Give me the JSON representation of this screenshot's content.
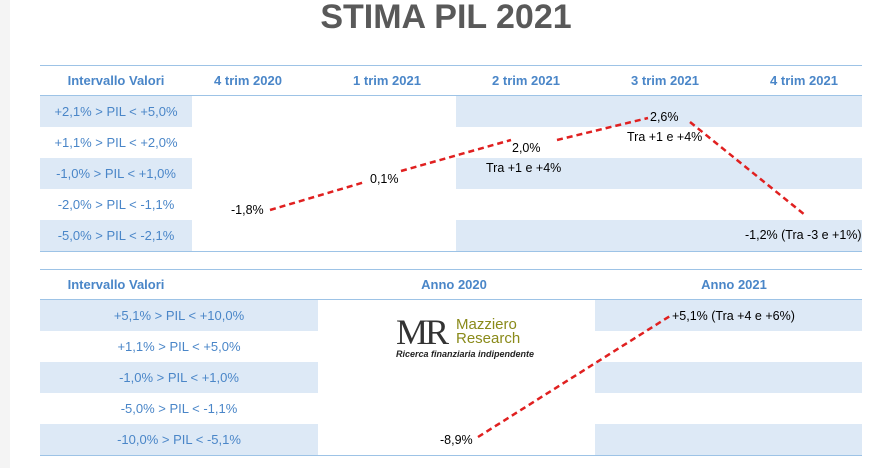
{
  "page": {
    "title": "STIMA PIL 2021"
  },
  "colors": {
    "band": "#dde9f6",
    "header_text": "#4a86c8",
    "line": "#e02020"
  },
  "logo": {
    "mark": "MR",
    "brand_line1": "Mazziero",
    "brand_line2": "Research",
    "tagline": "Ricerca finanziaria indipendente"
  },
  "chart_data": [
    {
      "type": "line",
      "title": "",
      "xlabel": "Intervallo Valori",
      "categories": [
        "4 trim 2020",
        "1 trim 2021",
        "2 trim 2021",
        "3 trim 2021",
        "4 trim 2021"
      ],
      "row_labels": [
        "+2,1% > PIL < +5,0%",
        "+1,1% > PIL < +2,0%",
        "-1,0% > PIL < +1,0%",
        "-2,0% > PIL < -1,1%",
        "-5,0% > PIL < -2,1%"
      ],
      "series": [
        {
          "values": [
            -1.8,
            0.1,
            2.0,
            2.6,
            -1.2
          ],
          "labels": [
            "-1,8%",
            "0,1%",
            "2,0%",
            "2,6%",
            "-1,2% (Tra -3 e +1%)"
          ],
          "range_notes": [
            "",
            "",
            "Tra +1 e +4%",
            "Tra +1 e +4%",
            ""
          ]
        }
      ]
    },
    {
      "type": "line",
      "title": "",
      "xlabel": "Intervallo Valori",
      "categories": [
        "Anno 2020",
        "Anno 2021"
      ],
      "row_labels": [
        "+5,1% > PIL < +10,0%",
        "+1,1% > PIL < +5,0%",
        "-1,0% > PIL < +1,0%",
        "-5,0% > PIL < -1,1%",
        "-10,0% > PIL < -5,1%"
      ],
      "series": [
        {
          "values": [
            -8.9,
            5.1
          ],
          "labels": [
            "-8,9%",
            "+5,1% (Tra +4 e +6%)"
          ]
        }
      ]
    }
  ]
}
